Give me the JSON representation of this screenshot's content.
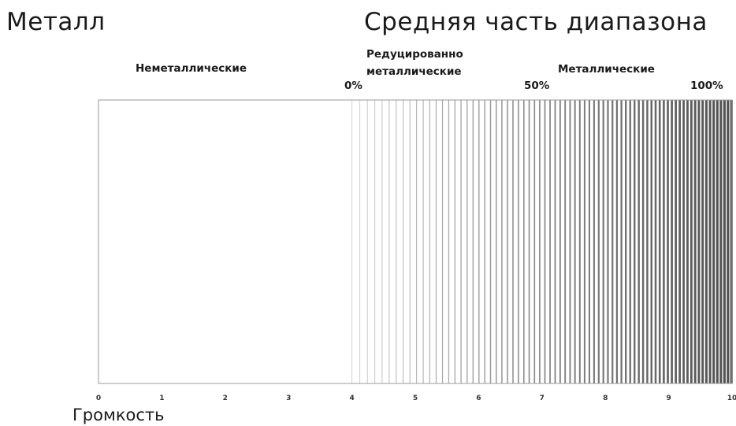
{
  "header": {
    "left_title": "Металл",
    "right_title": "Средняя часть диапазона"
  },
  "zones": {
    "nonmetal": "Неметаллические",
    "reduced_line1": "Редуцированно",
    "reduced_line2": "металлические",
    "metal": "Металлические"
  },
  "percent_labels": {
    "p0": "0%",
    "p50": "50%",
    "p100": "100%"
  },
  "axis": {
    "title": "Громкость",
    "ticks": [
      "0",
      "1",
      "2",
      "3",
      "4",
      "5",
      "6",
      "7",
      "8",
      "9",
      "10"
    ],
    "range": [
      0,
      10
    ]
  },
  "gradient": {
    "start_value": 4,
    "end_value": 10,
    "light_color": "#d4d4d4",
    "dark_color": "#505050"
  }
}
